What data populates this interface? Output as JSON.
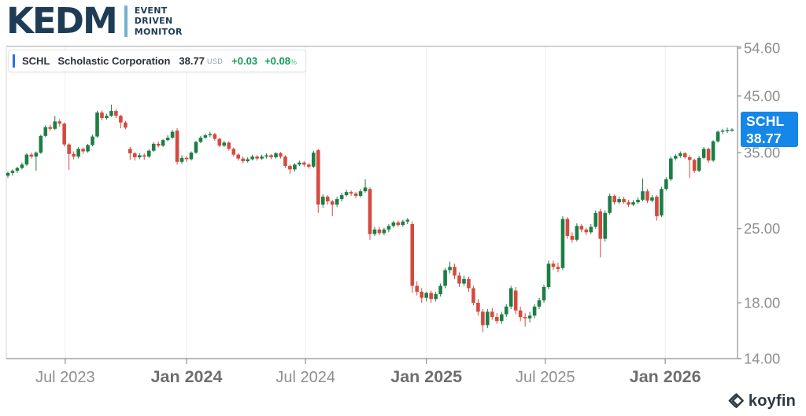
{
  "header": {
    "brand": "KEDM",
    "tagline_line1": "EVENT",
    "tagline_line2": "DRIVEN",
    "tagline_line3": "MONITOR"
  },
  "legend": {
    "ticker": "SCHL",
    "company": "Scholastic Corporation",
    "price": "38.77",
    "currency": "USD",
    "change": "+0.03",
    "change_percent": "+0.08",
    "percent_sign": "%"
  },
  "price_tag": {
    "ticker": "SCHL",
    "price": "38.77",
    "value": 38.77,
    "color": "#1587e9"
  },
  "footer": {
    "brand": "koyfin"
  },
  "chart_data": {
    "type": "candlestick",
    "title": "SCHL Scholastic Corporation — weekly candlestick price chart",
    "scale": "log",
    "grid": "vertical-only",
    "up_color": "#1d7e45",
    "down_color": "#d44a3f",
    "axis_label_color": "#8e8e8e",
    "last_price": 38.77,
    "ohlc_format": [
      "open",
      "high",
      "low",
      "close"
    ],
    "y_axis": {
      "side": "right",
      "range": [
        14.0,
        54.6
      ],
      "ticks": [
        {
          "value": 54.6,
          "label": "54.60"
        },
        {
          "value": 45.0,
          "label": "45.00"
        },
        {
          "value": 35.0,
          "label": "35.00"
        },
        {
          "value": 25.0,
          "label": "25.00"
        },
        {
          "value": 18.0,
          "label": "18.00"
        },
        {
          "value": 14.0,
          "label": "14.00"
        }
      ]
    },
    "x_axis": {
      "ticks": [
        {
          "index": 12.2,
          "label": "Jul 2023",
          "bold": false
        },
        {
          "index": 38.0,
          "label": "Jan 2024",
          "bold": true
        },
        {
          "index": 63.3,
          "label": "Jul 2024",
          "bold": false
        },
        {
          "index": 89.0,
          "label": "Jan 2025",
          "bold": true
        },
        {
          "index": 114.3,
          "label": "Jul 2025",
          "bold": false
        },
        {
          "index": 139.8,
          "label": "Jan 2026",
          "bold": true
        }
      ]
    },
    "candles": [
      [
        31.6,
        32.2,
        31.3,
        32.0
      ],
      [
        32.0,
        32.5,
        31.6,
        32.3
      ],
      [
        32.3,
        32.9,
        32.0,
        32.7
      ],
      [
        32.7,
        33.5,
        32.5,
        33.2
      ],
      [
        33.2,
        34.9,
        33.0,
        34.7
      ],
      [
        34.7,
        35.0,
        34.1,
        34.4
      ],
      [
        34.4,
        35.2,
        32.3,
        35.0
      ],
      [
        35.0,
        37.9,
        34.8,
        37.7
      ],
      [
        37.7,
        39.5,
        37.5,
        39.2
      ],
      [
        39.2,
        39.6,
        38.5,
        38.9
      ],
      [
        38.9,
        41.2,
        38.7,
        40.2
      ],
      [
        40.2,
        40.6,
        39.3,
        39.8
      ],
      [
        39.8,
        40.0,
        36.0,
        36.3
      ],
      [
        36.3,
        36.5,
        32.4,
        34.8
      ],
      [
        34.8,
        35.2,
        34.0,
        34.4
      ],
      [
        34.4,
        35.9,
        34.1,
        35.6
      ],
      [
        35.6,
        35.8,
        34.8,
        35.2
      ],
      [
        35.2,
        36.4,
        35.0,
        36.2
      ],
      [
        36.2,
        37.9,
        36.0,
        37.6
      ],
      [
        37.6,
        42.1,
        37.4,
        41.8
      ],
      [
        41.8,
        42.2,
        40.4,
        40.8
      ],
      [
        40.8,
        41.6,
        40.5,
        41.2
      ],
      [
        41.2,
        43.3,
        41.0,
        42.1
      ],
      [
        42.1,
        42.4,
        40.8,
        41.2
      ],
      [
        41.2,
        41.4,
        39.0,
        40.0
      ],
      [
        40.0,
        40.3,
        38.8,
        39.1
      ],
      [
        35.6,
        35.9,
        33.9,
        34.9
      ],
      [
        34.9,
        35.1,
        33.8,
        34.3
      ],
      [
        34.3,
        34.9,
        34.0,
        34.6
      ],
      [
        34.6,
        34.9,
        33.9,
        34.4
      ],
      [
        34.4,
        35.5,
        34.2,
        35.3
      ],
      [
        35.3,
        36.7,
        35.1,
        36.4
      ],
      [
        36.4,
        36.8,
        35.8,
        36.1
      ],
      [
        36.1,
        37.2,
        35.9,
        37.0
      ],
      [
        37.0,
        37.8,
        36.8,
        37.4
      ],
      [
        37.4,
        38.7,
        37.2,
        38.4
      ],
      [
        38.6,
        39.0,
        33.2,
        33.6
      ],
      [
        33.6,
        34.6,
        33.3,
        34.2
      ],
      [
        34.2,
        34.5,
        33.6,
        34.0
      ],
      [
        34.0,
        35.2,
        33.8,
        35.0
      ],
      [
        35.0,
        36.9,
        34.8,
        36.7
      ],
      [
        36.7,
        37.7,
        36.5,
        37.4
      ],
      [
        37.4,
        38.1,
        37.2,
        37.8
      ],
      [
        37.8,
        38.4,
        37.5,
        38.0
      ],
      [
        38.0,
        38.2,
        36.9,
        37.2
      ],
      [
        37.2,
        37.4,
        35.9,
        36.1
      ],
      [
        36.1,
        36.9,
        35.9,
        36.6
      ],
      [
        36.6,
        36.8,
        35.3,
        35.6
      ],
      [
        35.6,
        35.8,
        34.4,
        34.7
      ],
      [
        34.7,
        34.9,
        33.8,
        34.1
      ],
      [
        34.1,
        34.4,
        33.4,
        33.7
      ],
      [
        33.7,
        34.3,
        33.5,
        34.0
      ],
      [
        34.0,
        34.7,
        33.8,
        34.4
      ],
      [
        34.4,
        34.6,
        33.8,
        34.1
      ],
      [
        34.1,
        34.7,
        33.9,
        34.4
      ],
      [
        34.4,
        34.9,
        34.1,
        34.6
      ],
      [
        34.6,
        34.8,
        34.0,
        34.3
      ],
      [
        34.3,
        35.1,
        34.1,
        34.9
      ],
      [
        34.9,
        35.1,
        34.1,
        34.4
      ],
      [
        34.4,
        34.6,
        32.7,
        33.0
      ],
      [
        33.0,
        33.2,
        31.9,
        32.5
      ],
      [
        32.5,
        33.4,
        32.2,
        33.2
      ],
      [
        33.2,
        33.8,
        33.0,
        33.5
      ],
      [
        33.5,
        33.7,
        32.9,
        33.2
      ],
      [
        33.2,
        33.4,
        32.6,
        32.9
      ],
      [
        32.9,
        35.3,
        32.7,
        35.0
      ],
      [
        35.4,
        35.6,
        26.8,
        27.8
      ],
      [
        27.8,
        29.1,
        27.4,
        28.8
      ],
      [
        28.8,
        29.0,
        27.8,
        28.2
      ],
      [
        28.2,
        28.4,
        26.4,
        27.8
      ],
      [
        27.8,
        28.8,
        27.5,
        28.5
      ],
      [
        28.5,
        29.3,
        28.2,
        29.0
      ],
      [
        29.0,
        29.7,
        28.8,
        29.4
      ],
      [
        29.4,
        29.6,
        28.9,
        29.2
      ],
      [
        29.2,
        29.4,
        28.6,
        28.9
      ],
      [
        28.9,
        29.8,
        28.7,
        29.5
      ],
      [
        29.5,
        31.1,
        29.3,
        30.0
      ],
      [
        29.8,
        30.0,
        23.8,
        24.4
      ],
      [
        24.4,
        25.2,
        24.2,
        24.9
      ],
      [
        24.9,
        25.2,
        24.3,
        24.5
      ],
      [
        24.5,
        25.1,
        24.3,
        24.9
      ],
      [
        24.9,
        25.5,
        24.6,
        25.3
      ],
      [
        25.3,
        25.9,
        25.1,
        25.7
      ],
      [
        25.7,
        25.9,
        25.2,
        25.4
      ],
      [
        25.4,
        26.0,
        25.2,
        25.8
      ],
      [
        25.8,
        26.2,
        25.5,
        26.0
      ],
      [
        25.5,
        25.8,
        18.8,
        19.4
      ],
      [
        19.4,
        19.8,
        18.6,
        18.9
      ],
      [
        18.9,
        19.2,
        18.0,
        18.4
      ],
      [
        18.4,
        18.9,
        18.1,
        18.8
      ],
      [
        18.8,
        19.0,
        18.0,
        18.3
      ],
      [
        18.3,
        18.9,
        18.1,
        18.7
      ],
      [
        18.7,
        19.6,
        18.5,
        19.4
      ],
      [
        19.4,
        21.0,
        19.2,
        20.8
      ],
      [
        20.8,
        21.6,
        20.5,
        21.1
      ],
      [
        21.1,
        21.4,
        20.0,
        20.3
      ],
      [
        20.3,
        20.6,
        19.3,
        19.6
      ],
      [
        19.6,
        20.3,
        19.4,
        20.0
      ],
      [
        20.0,
        20.2,
        18.9,
        19.2
      ],
      [
        19.2,
        19.4,
        17.8,
        18.0
      ],
      [
        18.0,
        18.3,
        17.0,
        17.3
      ],
      [
        17.3,
        17.5,
        15.8,
        16.3
      ],
      [
        16.3,
        17.5,
        16.1,
        17.3
      ],
      [
        17.3,
        17.6,
        16.7,
        16.9
      ],
      [
        16.9,
        17.2,
        16.4,
        16.6
      ],
      [
        16.6,
        17.3,
        16.4,
        17.1
      ],
      [
        17.1,
        17.9,
        16.9,
        17.7
      ],
      [
        17.7,
        19.4,
        17.5,
        19.2
      ],
      [
        19.0,
        19.3,
        17.1,
        17.4
      ],
      [
        17.4,
        17.7,
        16.6,
        16.9
      ],
      [
        16.9,
        17.2,
        16.2,
        16.8
      ],
      [
        16.8,
        17.3,
        16.5,
        17.0
      ],
      [
        17.0,
        17.9,
        16.8,
        17.7
      ],
      [
        17.7,
        18.4,
        17.5,
        18.2
      ],
      [
        18.2,
        19.5,
        18.0,
        19.3
      ],
      [
        19.3,
        21.7,
        19.1,
        21.4
      ],
      [
        21.4,
        21.7,
        20.8,
        21.1
      ],
      [
        21.1,
        21.5,
        20.6,
        20.9
      ],
      [
        21.0,
        26.4,
        20.8,
        26.1
      ],
      [
        26.1,
        26.3,
        23.9,
        24.2
      ],
      [
        24.2,
        24.6,
        23.5,
        23.8
      ],
      [
        23.8,
        25.6,
        23.6,
        25.3
      ],
      [
        25.3,
        25.5,
        24.6,
        24.9
      ],
      [
        24.9,
        25.1,
        24.3,
        24.6
      ],
      [
        24.6,
        25.5,
        24.4,
        25.2
      ],
      [
        25.2,
        27.1,
        25.0,
        26.8
      ],
      [
        27.0,
        27.3,
        22.0,
        23.9
      ],
      [
        23.9,
        27.1,
        23.6,
        26.8
      ],
      [
        26.8,
        29.2,
        26.6,
        28.9
      ],
      [
        28.9,
        29.1,
        27.8,
        28.1
      ],
      [
        28.1,
        28.8,
        27.9,
        28.5
      ],
      [
        28.5,
        28.8,
        27.9,
        28.1
      ],
      [
        28.1,
        28.4,
        27.5,
        27.8
      ],
      [
        27.8,
        28.4,
        27.6,
        28.1
      ],
      [
        28.1,
        28.7,
        27.9,
        28.4
      ],
      [
        28.4,
        31.2,
        28.2,
        29.5
      ],
      [
        29.5,
        29.8,
        28.0,
        28.3
      ],
      [
        28.3,
        29.0,
        28.1,
        28.7
      ],
      [
        28.8,
        29.0,
        25.9,
        26.4
      ],
      [
        26.5,
        30.1,
        26.3,
        29.8
      ],
      [
        29.8,
        31.4,
        29.6,
        31.1
      ],
      [
        31.1,
        34.4,
        30.9,
        34.1
      ],
      [
        34.1,
        34.8,
        33.8,
        34.5
      ],
      [
        34.5,
        35.2,
        34.2,
        34.9
      ],
      [
        34.9,
        35.1,
        34.1,
        34.3
      ],
      [
        34.3,
        34.6,
        31.3,
        33.9
      ],
      [
        33.9,
        34.1,
        32.0,
        32.3
      ],
      [
        32.3,
        34.5,
        32.1,
        34.2
      ],
      [
        34.2,
        35.9,
        34.0,
        35.6
      ],
      [
        35.6,
        35.8,
        33.5,
        33.8
      ],
      [
        33.8,
        37.0,
        33.6,
        36.8
      ],
      [
        36.8,
        38.6,
        36.6,
        38.4
      ],
      [
        38.4,
        38.9,
        38.0,
        38.6
      ],
      [
        38.6,
        39.1,
        38.2,
        38.7
      ],
      [
        38.7,
        39.0,
        38.4,
        38.77
      ]
    ]
  }
}
